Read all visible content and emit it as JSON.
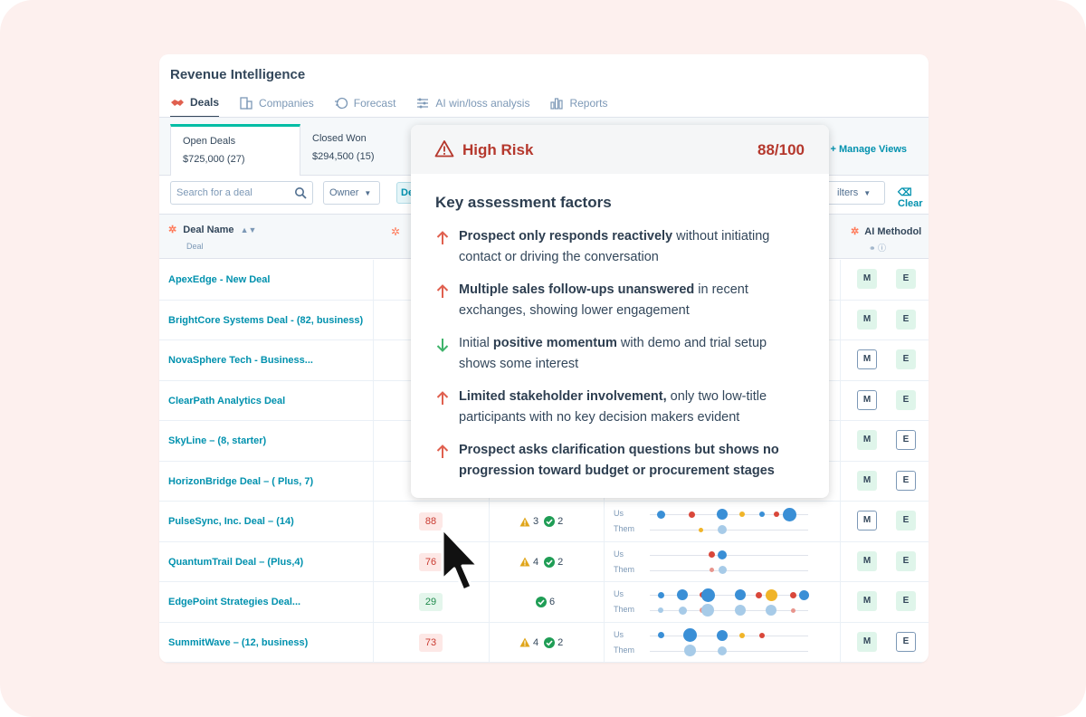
{
  "app": {
    "title": "Revenue Intelligence"
  },
  "nav": [
    {
      "label": "Deals",
      "icon": "handshake-icon",
      "active": true
    },
    {
      "label": "Companies",
      "icon": "building-icon",
      "active": false
    },
    {
      "label": "Forecast",
      "icon": "forecast-icon",
      "active": false
    },
    {
      "label": "AI win/loss analysis",
      "icon": "ai-analysis-icon",
      "active": false
    },
    {
      "label": "Reports",
      "icon": "reports-icon",
      "active": false
    }
  ],
  "views": {
    "tabs": [
      {
        "name": "Open Deals",
        "value": "$725,000 (27)",
        "active": true
      },
      {
        "name": "Closed Won",
        "value": "$294,500 (15)",
        "active": false
      }
    ],
    "manage_label": "+ Manage Views"
  },
  "filters": {
    "search_placeholder": "Search for a deal",
    "owner_label": "Owner",
    "deal_chip": "Deal",
    "more_filters_label": "ilters",
    "clear_label": "Clear"
  },
  "table": {
    "headers": {
      "deal_name": "Deal Name",
      "deal_sub": "Deal",
      "ai_methodology": "AI Methodol"
    },
    "engagement_labels": {
      "us": "Us",
      "them": "Them"
    },
    "rows": [
      {
        "name": "ApexEdge - New Deal",
        "m": "filled",
        "e": "filled"
      },
      {
        "name": "BrightCore Systems Deal - (82, business)",
        "m": "filled",
        "e": "filled"
      },
      {
        "name": "NovaSphere Tech - Business...",
        "m": "outline",
        "e": "filled"
      },
      {
        "name": "ClearPath Analytics Deal",
        "m": "outline",
        "e": "filled"
      },
      {
        "name": "SkyLine – (8, starter)",
        "m": "filled",
        "e": "outline"
      },
      {
        "name": "HorizonBridge Deal – ( Plus, 7)",
        "m": "filled",
        "e": "outline"
      },
      {
        "name": "PulseSync, Inc. Deal – (14)",
        "score": "88",
        "score_color": "red",
        "warnings": "3",
        "checks": "2",
        "m": "outline",
        "e": "filled"
      },
      {
        "name": "QuantumTrail Deal – (Plus,4)",
        "score": "76",
        "score_color": "red",
        "warnings": "4",
        "checks": "2",
        "m": "filled",
        "e": "filled"
      },
      {
        "name": "EdgePoint Strategies Deal...",
        "score": "29",
        "score_color": "green",
        "warnings": "",
        "checks": "6",
        "m": "filled",
        "e": "filled"
      },
      {
        "name": "SummitWave – (12, business)",
        "score": "73",
        "score_color": "red",
        "warnings": "4",
        "checks": "2",
        "m": "filled",
        "e": "outline"
      }
    ],
    "method_letters": {
      "m": "M",
      "e": "E"
    }
  },
  "popover": {
    "risk_label": "High Risk",
    "score": "88/100",
    "heading": "Key assessment factors",
    "factors": [
      {
        "direction": "up",
        "bold": "Prospect only responds reactively",
        "rest": " without initiating contact or driving the conversation"
      },
      {
        "direction": "up",
        "bold": "Multiple sales follow-ups unanswered",
        "rest": " in recent exchanges, showing lower engagement"
      },
      {
        "direction": "down",
        "pre": "Initial ",
        "bold": "positive momentum",
        "rest": " with demo and trial setup shows some interest"
      },
      {
        "direction": "up",
        "bold": "Limited stakeholder involvement,",
        "rest": " only two low-title participants with no key decision makers evident"
      },
      {
        "direction": "up",
        "bold": "Prospect asks clarification questions but shows no progression toward budget or procurement stages",
        "rest": ""
      }
    ]
  },
  "colors": {
    "accent_teal": "#00bda5",
    "link_blue": "#0091ae",
    "risk_red": "#b5382d",
    "arrow_up": "#e0604f",
    "arrow_down": "#3fb36b"
  }
}
